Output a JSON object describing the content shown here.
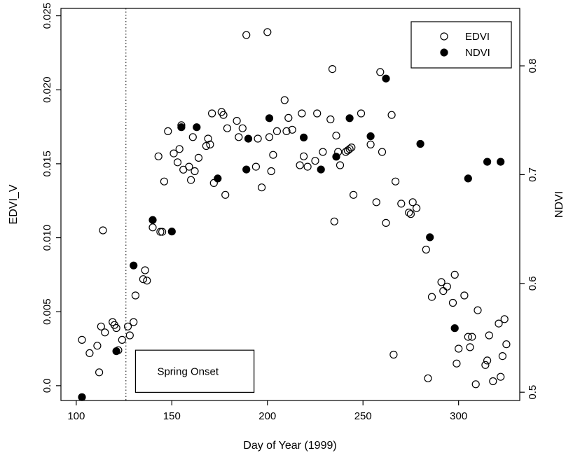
{
  "chart_data": {
    "type": "scatter",
    "xlabel": "Day of Year (1999)",
    "ylabel": "EDVI_V",
    "y2label": "NDVI",
    "xlim": [
      92,
      332
    ],
    "ylim": [
      -0.001,
      0.0255
    ],
    "y2lim": [
      0.4924,
      0.8528
    ],
    "x_ticks": [
      100,
      150,
      200,
      250,
      300
    ],
    "y_ticks": [
      0.0,
      0.005,
      0.01,
      0.015,
      0.02,
      0.025
    ],
    "y_tick_labels": [
      "0.0",
      "0.005",
      "0.010",
      "0.015",
      "0.020",
      "0.025"
    ],
    "y2_ticks": [
      0.5,
      0.6,
      0.7,
      0.8
    ],
    "y2_tick_labels": [
      "0.5",
      "0.6",
      "0.7",
      "0.8"
    ],
    "legend": {
      "position": "top-right",
      "entries": [
        "EDVI",
        "NDVI"
      ]
    },
    "annotation": {
      "text": "Spring Onset",
      "vline_x": 126,
      "box": {
        "x": [
          131,
          193
        ],
        "y": [
          -0.00045,
          0.0024
        ]
      }
    },
    "series": [
      {
        "name": "EDVI",
        "marker": "open-circle",
        "axis": "left",
        "points": [
          [
            103,
            0.0031
          ],
          [
            107,
            0.0022
          ],
          [
            111,
            0.0027
          ],
          [
            112,
            0.0009
          ],
          [
            113,
            0.004
          ],
          [
            114,
            0.0105
          ],
          [
            115,
            0.0036
          ],
          [
            119,
            0.0043
          ],
          [
            120,
            0.0041
          ],
          [
            121,
            0.0039
          ],
          [
            122,
            0.0024
          ],
          [
            124,
            0.0031
          ],
          [
            127,
            0.004
          ],
          [
            128,
            0.0034
          ],
          [
            130,
            0.0043
          ],
          [
            131,
            0.0061
          ],
          [
            135,
            0.0072
          ],
          [
            136,
            0.0078
          ],
          [
            137,
            0.0071
          ],
          [
            140,
            0.0107
          ],
          [
            143,
            0.0155
          ],
          [
            144,
            0.0104
          ],
          [
            145,
            0.0104
          ],
          [
            146,
            0.0138
          ],
          [
            148,
            0.0172
          ],
          [
            151,
            0.0157
          ],
          [
            153,
            0.0151
          ],
          [
            154,
            0.016
          ],
          [
            155,
            0.0176
          ],
          [
            156,
            0.0146
          ],
          [
            159,
            0.0148
          ],
          [
            160,
            0.0139
          ],
          [
            161,
            0.0168
          ],
          [
            162,
            0.0145
          ],
          [
            164,
            0.0154
          ],
          [
            168,
            0.0162
          ],
          [
            169,
            0.0167
          ],
          [
            170,
            0.0163
          ],
          [
            171,
            0.0184
          ],
          [
            172,
            0.0137
          ],
          [
            176,
            0.0185
          ],
          [
            177,
            0.0183
          ],
          [
            178,
            0.0129
          ],
          [
            179,
            0.0174
          ],
          [
            184,
            0.0179
          ],
          [
            185,
            0.0168
          ],
          [
            187,
            0.0174
          ],
          [
            189,
            0.0237
          ],
          [
            194,
            0.0148
          ],
          [
            195,
            0.0167
          ],
          [
            197,
            0.0134
          ],
          [
            200,
            0.0239
          ],
          [
            201,
            0.0168
          ],
          [
            202,
            0.0145
          ],
          [
            203,
            0.0156
          ],
          [
            205,
            0.0172
          ],
          [
            209,
            0.0193
          ],
          [
            210,
            0.0172
          ],
          [
            211,
            0.0181
          ],
          [
            213,
            0.0173
          ],
          [
            217,
            0.0149
          ],
          [
            218,
            0.0184
          ],
          [
            219,
            0.0155
          ],
          [
            221,
            0.0148
          ],
          [
            225,
            0.0152
          ],
          [
            226,
            0.0184
          ],
          [
            229,
            0.0158
          ],
          [
            233,
            0.018
          ],
          [
            234,
            0.0214
          ],
          [
            235,
            0.0111
          ],
          [
            236,
            0.0169
          ],
          [
            237,
            0.0158
          ],
          [
            238,
            0.0149
          ],
          [
            241,
            0.0158
          ],
          [
            242,
            0.0159
          ],
          [
            243,
            0.016
          ],
          [
            244,
            0.0161
          ],
          [
            245,
            0.0129
          ],
          [
            249,
            0.0184
          ],
          [
            254,
            0.0163
          ],
          [
            257,
            0.0124
          ],
          [
            259,
            0.0212
          ],
          [
            260,
            0.0158
          ],
          [
            262,
            0.011
          ],
          [
            265,
            0.0183
          ],
          [
            266,
            0.0021
          ],
          [
            267,
            0.0138
          ],
          [
            270,
            0.0123
          ],
          [
            274,
            0.0117
          ],
          [
            275,
            0.0116
          ],
          [
            276,
            0.0124
          ],
          [
            278,
            0.012
          ],
          [
            283,
            0.0092
          ],
          [
            284,
            0.0005
          ],
          [
            286,
            0.006
          ],
          [
            291,
            0.007
          ],
          [
            292,
            0.0064
          ],
          [
            294,
            0.0067
          ],
          [
            297,
            0.0056
          ],
          [
            298,
            0.0075
          ],
          [
            299,
            0.0015
          ],
          [
            300,
            0.0025
          ],
          [
            303,
            0.0061
          ],
          [
            305,
            0.0033
          ],
          [
            306,
            0.0026
          ],
          [
            307,
            0.0033
          ],
          [
            309,
            0.0001
          ],
          [
            310,
            0.0051
          ],
          [
            314,
            0.0014
          ],
          [
            315,
            0.0017
          ],
          [
            316,
            0.0034
          ],
          [
            318,
            0.0003
          ],
          [
            321,
            0.0042
          ],
          [
            322,
            0.0006
          ],
          [
            323,
            0.002
          ],
          [
            324,
            0.0045
          ],
          [
            325,
            0.0028
          ]
        ]
      },
      {
        "name": "NDVI",
        "marker": "filled-circle",
        "axis": "right",
        "points": [
          [
            103,
            0.4955
          ],
          [
            121,
            0.5377
          ],
          [
            130,
            0.6165
          ],
          [
            140,
            0.6583
          ],
          [
            150,
            0.6477
          ],
          [
            155,
            0.7436
          ],
          [
            163,
            0.7436
          ],
          [
            174,
            0.6965
          ],
          [
            189,
            0.7047
          ],
          [
            190,
            0.733
          ],
          [
            201,
            0.7519
          ],
          [
            219,
            0.7341
          ],
          [
            228,
            0.7047
          ],
          [
            236,
            0.7165
          ],
          [
            243,
            0.7519
          ],
          [
            254,
            0.7353
          ],
          [
            262,
            0.7883
          ],
          [
            280,
            0.7283
          ],
          [
            285,
            0.6424
          ],
          [
            298,
            0.5589
          ],
          [
            305,
            0.6965
          ],
          [
            315,
            0.7118
          ],
          [
            322,
            0.7118
          ]
        ]
      }
    ]
  }
}
